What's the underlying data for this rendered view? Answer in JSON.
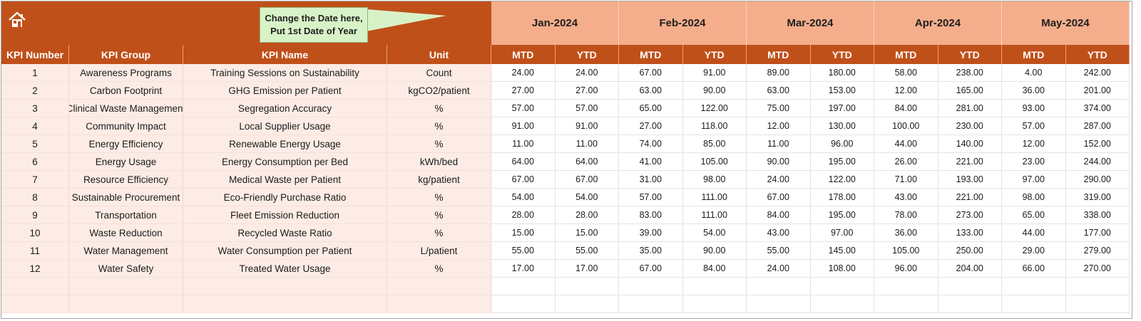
{
  "callout": {
    "line1": "Change the Date here,",
    "line2": "Put 1st Date of Year"
  },
  "months": [
    "Jan-2024",
    "Feb-2024",
    "Mar-2024",
    "Apr-2024",
    "May-2024"
  ],
  "headers": {
    "kpi_number": "KPI Number",
    "kpi_group": "KPI Group",
    "kpi_name": "KPI Name",
    "unit": "Unit",
    "mtd": "MTD",
    "ytd": "YTD"
  },
  "rows": [
    {
      "num": "1",
      "group": "Awareness Programs",
      "name": "Training Sessions on Sustainability",
      "unit": "Count",
      "vals": [
        "24.00",
        "24.00",
        "67.00",
        "91.00",
        "89.00",
        "180.00",
        "58.00",
        "238.00",
        "4.00",
        "242.00"
      ]
    },
    {
      "num": "2",
      "group": "Carbon Footprint",
      "name": "GHG Emission per Patient",
      "unit": "kgCO2/patient",
      "vals": [
        "27.00",
        "27.00",
        "63.00",
        "90.00",
        "63.00",
        "153.00",
        "12.00",
        "165.00",
        "36.00",
        "201.00"
      ]
    },
    {
      "num": "3",
      "group": "Clinical Waste Management",
      "name": "Segregation Accuracy",
      "unit": "%",
      "vals": [
        "57.00",
        "57.00",
        "65.00",
        "122.00",
        "75.00",
        "197.00",
        "84.00",
        "281.00",
        "93.00",
        "374.00"
      ]
    },
    {
      "num": "4",
      "group": "Community Impact",
      "name": "Local Supplier Usage",
      "unit": "%",
      "vals": [
        "91.00",
        "91.00",
        "27.00",
        "118.00",
        "12.00",
        "130.00",
        "100.00",
        "230.00",
        "57.00",
        "287.00"
      ]
    },
    {
      "num": "5",
      "group": "Energy Efficiency",
      "name": "Renewable Energy Usage",
      "unit": "%",
      "vals": [
        "11.00",
        "11.00",
        "74.00",
        "85.00",
        "11.00",
        "96.00",
        "44.00",
        "140.00",
        "12.00",
        "152.00"
      ]
    },
    {
      "num": "6",
      "group": "Energy Usage",
      "name": "Energy Consumption per Bed",
      "unit": "kWh/bed",
      "vals": [
        "64.00",
        "64.00",
        "41.00",
        "105.00",
        "90.00",
        "195.00",
        "26.00",
        "221.00",
        "23.00",
        "244.00"
      ]
    },
    {
      "num": "7",
      "group": "Resource Efficiency",
      "name": "Medical Waste per Patient",
      "unit": "kg/patient",
      "vals": [
        "67.00",
        "67.00",
        "31.00",
        "98.00",
        "24.00",
        "122.00",
        "71.00",
        "193.00",
        "97.00",
        "290.00"
      ]
    },
    {
      "num": "8",
      "group": "Sustainable Procurement",
      "name": "Eco-Friendly Purchase Ratio",
      "unit": "%",
      "vals": [
        "54.00",
        "54.00",
        "57.00",
        "111.00",
        "67.00",
        "178.00",
        "43.00",
        "221.00",
        "98.00",
        "319.00"
      ]
    },
    {
      "num": "9",
      "group": "Transportation",
      "name": "Fleet Emission Reduction",
      "unit": "%",
      "vals": [
        "28.00",
        "28.00",
        "83.00",
        "111.00",
        "84.00",
        "195.00",
        "78.00",
        "273.00",
        "65.00",
        "338.00"
      ]
    },
    {
      "num": "10",
      "group": "Waste Reduction",
      "name": "Recycled Waste Ratio",
      "unit": "%",
      "vals": [
        "15.00",
        "15.00",
        "39.00",
        "54.00",
        "43.00",
        "97.00",
        "36.00",
        "133.00",
        "44.00",
        "177.00"
      ]
    },
    {
      "num": "11",
      "group": "Water Management",
      "name": "Water Consumption per Patient",
      "unit": "L/patient",
      "vals": [
        "55.00",
        "55.00",
        "35.00",
        "90.00",
        "55.00",
        "145.00",
        "105.00",
        "250.00",
        "29.00",
        "279.00"
      ]
    },
    {
      "num": "12",
      "group": "Water Safety",
      "name": "Treated Water Usage",
      "unit": "%",
      "vals": [
        "17.00",
        "17.00",
        "67.00",
        "84.00",
        "24.00",
        "108.00",
        "96.00",
        "204.00",
        "66.00",
        "270.00"
      ]
    }
  ],
  "empty_rows": 2,
  "colors": {
    "banner": "#c0501a",
    "month_header": "#f4ae8b",
    "left_body": "#fdece5",
    "callout": "#d8f2c8"
  },
  "icons": {
    "home": "home-icon"
  }
}
